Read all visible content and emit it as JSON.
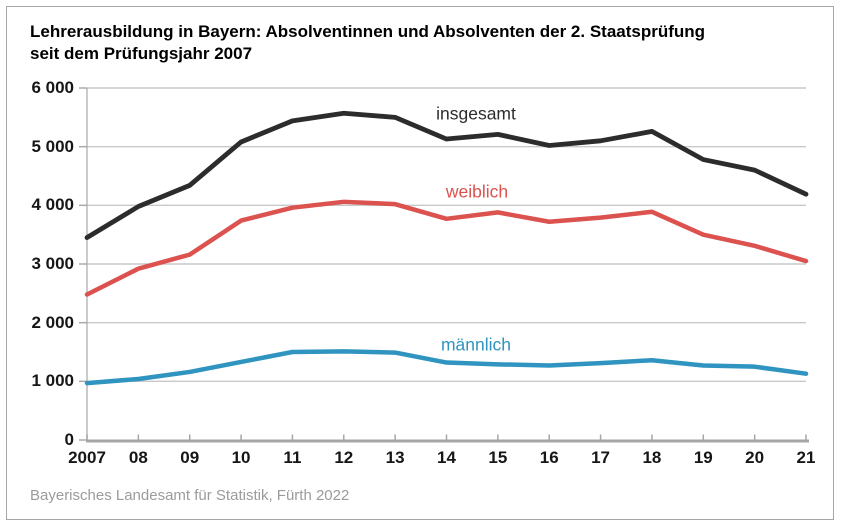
{
  "title": {
    "line1": "Lehrerausbildung in Bayern: Absolventinnen und Absolventen der 2. Staatsprüfung",
    "line2": "seit dem Prüfungsjahr 2007"
  },
  "source": "Bayerisches Landesamt für Statistik, Fürth 2022",
  "colors": {
    "grid": "#c9c9c9",
    "axis": "#a6a6a6",
    "tick": "#a6a6a6",
    "y_axis_line": "#b5b5b5",
    "axis_label": "#161616",
    "source_text": "#9b9b9b",
    "frame_border": "#a6a6a6"
  },
  "chart_data": {
    "type": "line",
    "title": "Lehrerausbildung in Bayern: Absolventinnen und Absolventen der 2. Staatsprüfung seit dem Prüfungsjahr 2007",
    "xlabel": "",
    "ylabel": "",
    "ylim": [
      0,
      6000
    ],
    "y_ticks": [
      0,
      1000,
      2000,
      3000,
      4000,
      5000,
      6000
    ],
    "y_tick_labels": [
      "0",
      "1 000",
      "2 000",
      "3 000",
      "4 000",
      "5 000",
      "6 000"
    ],
    "grid": "horizontal",
    "legend_position": "inline-labels-on-lines",
    "categories": [
      "2007",
      "08",
      "09",
      "10",
      "11",
      "12",
      "13",
      "14",
      "15",
      "16",
      "17",
      "18",
      "19",
      "20",
      "21"
    ],
    "series": [
      {
        "name": "insgesamt",
        "color": "#2c2c2c",
        "values": [
          3450,
          3980,
          4340,
          5080,
          5440,
          5570,
          5500,
          5130,
          5210,
          5020,
          5100,
          5260,
          4780,
          4600,
          4190
        ]
      },
      {
        "name": "weiblich",
        "color": "#db524e",
        "values": [
          2480,
          2920,
          3160,
          3740,
          3960,
          4060,
          4020,
          3770,
          3880,
          3720,
          3790,
          3890,
          3500,
          3310,
          3050
        ]
      },
      {
        "name": "männlich",
        "color": "#2f94bf",
        "values": [
          970,
          1040,
          1160,
          1330,
          1500,
          1510,
          1490,
          1320,
          1290,
          1270,
          1310,
          1360,
          1270,
          1250,
          1130
        ]
      }
    ]
  }
}
